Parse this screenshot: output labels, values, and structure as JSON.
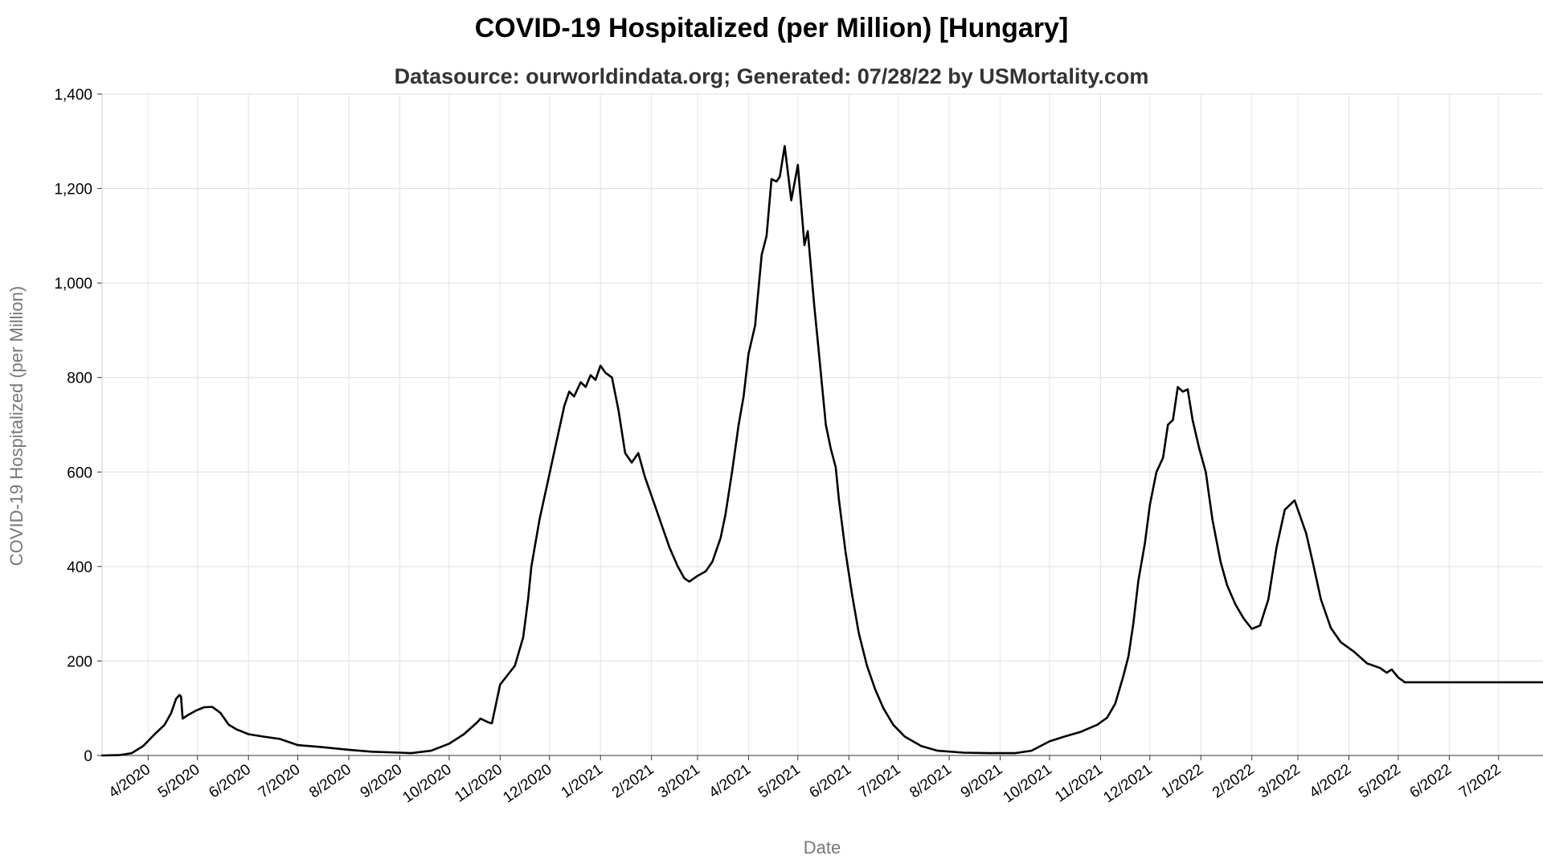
{
  "chart_data": {
    "type": "line",
    "title": "COVID-19 Hospitalized (per Million) [Hungary]",
    "subtitle": "Datasource: ourworldindata.org; Generated: 07/28/22 by USMortality.com",
    "xlabel": "Date",
    "ylabel": "COVID-19 Hospitalized (per Million)",
    "ylim": [
      0,
      1400
    ],
    "xlim": [
      "2020-03-04",
      "2022-07-28"
    ],
    "grid": true,
    "y_ticks": [
      0,
      200,
      400,
      600,
      800,
      1000,
      1200,
      1400
    ],
    "y_tick_labels": [
      "0",
      "200",
      "400",
      "600",
      "800",
      "1,000",
      "1,200",
      "1,400"
    ],
    "x_ticks": [
      {
        "date": "2020-04-01",
        "label": "4/2020"
      },
      {
        "date": "2020-05-01",
        "label": "5/2020"
      },
      {
        "date": "2020-06-01",
        "label": "6/2020"
      },
      {
        "date": "2020-07-01",
        "label": "7/2020"
      },
      {
        "date": "2020-08-01",
        "label": "8/2020"
      },
      {
        "date": "2020-09-01",
        "label": "9/2020"
      },
      {
        "date": "2020-10-01",
        "label": "10/2020"
      },
      {
        "date": "2020-11-01",
        "label": "11/2020"
      },
      {
        "date": "2020-12-01",
        "label": "12/2020"
      },
      {
        "date": "2021-01-01",
        "label": "1/2021"
      },
      {
        "date": "2021-02-01",
        "label": "2/2021"
      },
      {
        "date": "2021-03-01",
        "label": "3/2021"
      },
      {
        "date": "2021-04-01",
        "label": "4/2021"
      },
      {
        "date": "2021-05-01",
        "label": "5/2021"
      },
      {
        "date": "2021-06-01",
        "label": "6/2021"
      },
      {
        "date": "2021-07-01",
        "label": "7/2021"
      },
      {
        "date": "2021-08-01",
        "label": "8/2021"
      },
      {
        "date": "2021-09-01",
        "label": "9/2021"
      },
      {
        "date": "2021-10-01",
        "label": "10/2021"
      },
      {
        "date": "2021-11-01",
        "label": "11/2021"
      },
      {
        "date": "2021-12-01",
        "label": "12/2021"
      },
      {
        "date": "2022-01-01",
        "label": "1/2022"
      },
      {
        "date": "2022-02-01",
        "label": "2/2022"
      },
      {
        "date": "2022-03-01",
        "label": "3/2022"
      },
      {
        "date": "2022-04-01",
        "label": "4/2022"
      },
      {
        "date": "2022-05-01",
        "label": "5/2022"
      },
      {
        "date": "2022-06-01",
        "label": "6/2022"
      },
      {
        "date": "2022-07-01",
        "label": "7/2022"
      }
    ],
    "series": [
      {
        "color": "#000000",
        "points": [
          [
            "2020-03-04",
            0
          ],
          [
            "2020-03-15",
            1
          ],
          [
            "2020-03-22",
            5
          ],
          [
            "2020-03-29",
            20
          ],
          [
            "2020-04-05",
            45
          ],
          [
            "2020-04-11",
            65
          ],
          [
            "2020-04-15",
            90
          ],
          [
            "2020-04-18",
            120
          ],
          [
            "2020-04-20",
            128
          ],
          [
            "2020-04-21",
            125
          ],
          [
            "2020-04-22",
            78
          ],
          [
            "2020-04-25",
            85
          ],
          [
            "2020-04-30",
            95
          ],
          [
            "2020-05-05",
            102
          ],
          [
            "2020-05-10",
            103
          ],
          [
            "2020-05-15",
            90
          ],
          [
            "2020-05-20",
            65
          ],
          [
            "2020-05-25",
            55
          ],
          [
            "2020-06-01",
            45
          ],
          [
            "2020-06-10",
            40
          ],
          [
            "2020-06-20",
            35
          ],
          [
            "2020-07-01",
            22
          ],
          [
            "2020-07-15",
            18
          ],
          [
            "2020-08-01",
            12
          ],
          [
            "2020-08-15",
            8
          ],
          [
            "2020-09-01",
            6
          ],
          [
            "2020-09-08",
            5
          ],
          [
            "2020-09-20",
            10
          ],
          [
            "2020-10-01",
            25
          ],
          [
            "2020-10-10",
            45
          ],
          [
            "2020-10-18",
            70
          ],
          [
            "2020-10-20",
            78
          ],
          [
            "2020-10-25",
            70
          ],
          [
            "2020-10-27",
            68
          ],
          [
            "2020-11-01",
            150
          ],
          [
            "2020-11-10",
            190
          ],
          [
            "2020-11-15",
            250
          ],
          [
            "2020-11-18",
            330
          ],
          [
            "2020-11-20",
            400
          ],
          [
            "2020-11-25",
            500
          ],
          [
            "2020-11-30",
            580
          ],
          [
            "2020-12-05",
            660
          ],
          [
            "2020-12-10",
            740
          ],
          [
            "2020-12-13",
            770
          ],
          [
            "2020-12-16",
            760
          ],
          [
            "2020-12-20",
            790
          ],
          [
            "2020-12-23",
            780
          ],
          [
            "2020-12-26",
            805
          ],
          [
            "2020-12-29",
            795
          ],
          [
            "2021-01-01",
            825
          ],
          [
            "2021-01-04",
            810
          ],
          [
            "2021-01-08",
            800
          ],
          [
            "2021-01-12",
            730
          ],
          [
            "2021-01-16",
            640
          ],
          [
            "2021-01-20",
            620
          ],
          [
            "2021-01-24",
            640
          ],
          [
            "2021-01-28",
            590
          ],
          [
            "2021-02-02",
            540
          ],
          [
            "2021-02-07",
            490
          ],
          [
            "2021-02-12",
            440
          ],
          [
            "2021-02-17",
            400
          ],
          [
            "2021-02-21",
            375
          ],
          [
            "2021-02-24",
            368
          ],
          [
            "2021-03-01",
            380
          ],
          [
            "2021-03-06",
            390
          ],
          [
            "2021-03-10",
            410
          ],
          [
            "2021-03-15",
            460
          ],
          [
            "2021-03-18",
            510
          ],
          [
            "2021-03-22",
            600
          ],
          [
            "2021-03-26",
            700
          ],
          [
            "2021-03-29",
            760
          ],
          [
            "2021-04-01",
            850
          ],
          [
            "2021-04-05",
            910
          ],
          [
            "2021-04-09",
            1060
          ],
          [
            "2021-04-12",
            1100
          ],
          [
            "2021-04-15",
            1220
          ],
          [
            "2021-04-18",
            1215
          ],
          [
            "2021-04-20",
            1225
          ],
          [
            "2021-04-23",
            1290
          ],
          [
            "2021-04-27",
            1175
          ],
          [
            "2021-05-01",
            1250
          ],
          [
            "2021-05-05",
            1080
          ],
          [
            "2021-05-07",
            1110
          ],
          [
            "2021-05-11",
            950
          ],
          [
            "2021-05-13",
            880
          ],
          [
            "2021-05-18",
            700
          ],
          [
            "2021-05-21",
            650
          ],
          [
            "2021-05-24",
            610
          ],
          [
            "2021-05-26",
            540
          ],
          [
            "2021-05-30",
            430
          ],
          [
            "2021-06-03",
            340
          ],
          [
            "2021-06-07",
            260
          ],
          [
            "2021-06-12",
            190
          ],
          [
            "2021-06-17",
            140
          ],
          [
            "2021-06-22",
            100
          ],
          [
            "2021-06-28",
            65
          ],
          [
            "2021-07-05",
            40
          ],
          [
            "2021-07-15",
            20
          ],
          [
            "2021-07-25",
            10
          ],
          [
            "2021-08-10",
            6
          ],
          [
            "2021-08-25",
            5
          ],
          [
            "2021-09-10",
            5
          ],
          [
            "2021-09-20",
            10
          ],
          [
            "2021-10-01",
            30
          ],
          [
            "2021-10-10",
            40
          ],
          [
            "2021-10-20",
            50
          ],
          [
            "2021-10-30",
            65
          ],
          [
            "2021-11-05",
            80
          ],
          [
            "2021-11-10",
            110
          ],
          [
            "2021-11-15",
            170
          ],
          [
            "2021-11-18",
            210
          ],
          [
            "2021-11-21",
            280
          ],
          [
            "2021-11-24",
            370
          ],
          [
            "2021-11-28",
            450
          ],
          [
            "2021-12-01",
            530
          ],
          [
            "2021-12-05",
            600
          ],
          [
            "2021-12-09",
            630
          ],
          [
            "2021-12-12",
            700
          ],
          [
            "2021-12-15",
            710
          ],
          [
            "2021-12-18",
            780
          ],
          [
            "2021-12-21",
            770
          ],
          [
            "2021-12-24",
            775
          ],
          [
            "2021-12-27",
            710
          ],
          [
            "2021-12-31",
            650
          ],
          [
            "2022-01-04",
            600
          ],
          [
            "2022-01-08",
            500
          ],
          [
            "2022-01-13",
            410
          ],
          [
            "2022-01-17",
            360
          ],
          [
            "2022-01-22",
            320
          ],
          [
            "2022-01-27",
            290
          ],
          [
            "2022-02-01",
            268
          ],
          [
            "2022-02-06",
            275
          ],
          [
            "2022-02-11",
            330
          ],
          [
            "2022-02-16",
            440
          ],
          [
            "2022-02-21",
            520
          ],
          [
            "2022-02-24",
            530
          ],
          [
            "2022-02-27",
            540
          ],
          [
            "2022-03-02",
            510
          ],
          [
            "2022-03-06",
            470
          ],
          [
            "2022-03-10",
            410
          ],
          [
            "2022-03-15",
            330
          ],
          [
            "2022-03-21",
            270
          ],
          [
            "2022-03-27",
            240
          ],
          [
            "2022-04-04",
            220
          ],
          [
            "2022-04-12",
            195
          ],
          [
            "2022-04-20",
            185
          ],
          [
            "2022-04-24",
            175
          ],
          [
            "2022-04-27",
            182
          ],
          [
            "2022-05-01",
            165
          ],
          [
            "2022-05-05",
            155
          ],
          [
            "2022-05-10",
            155
          ],
          [
            "2022-07-28",
            155
          ]
        ]
      }
    ]
  }
}
